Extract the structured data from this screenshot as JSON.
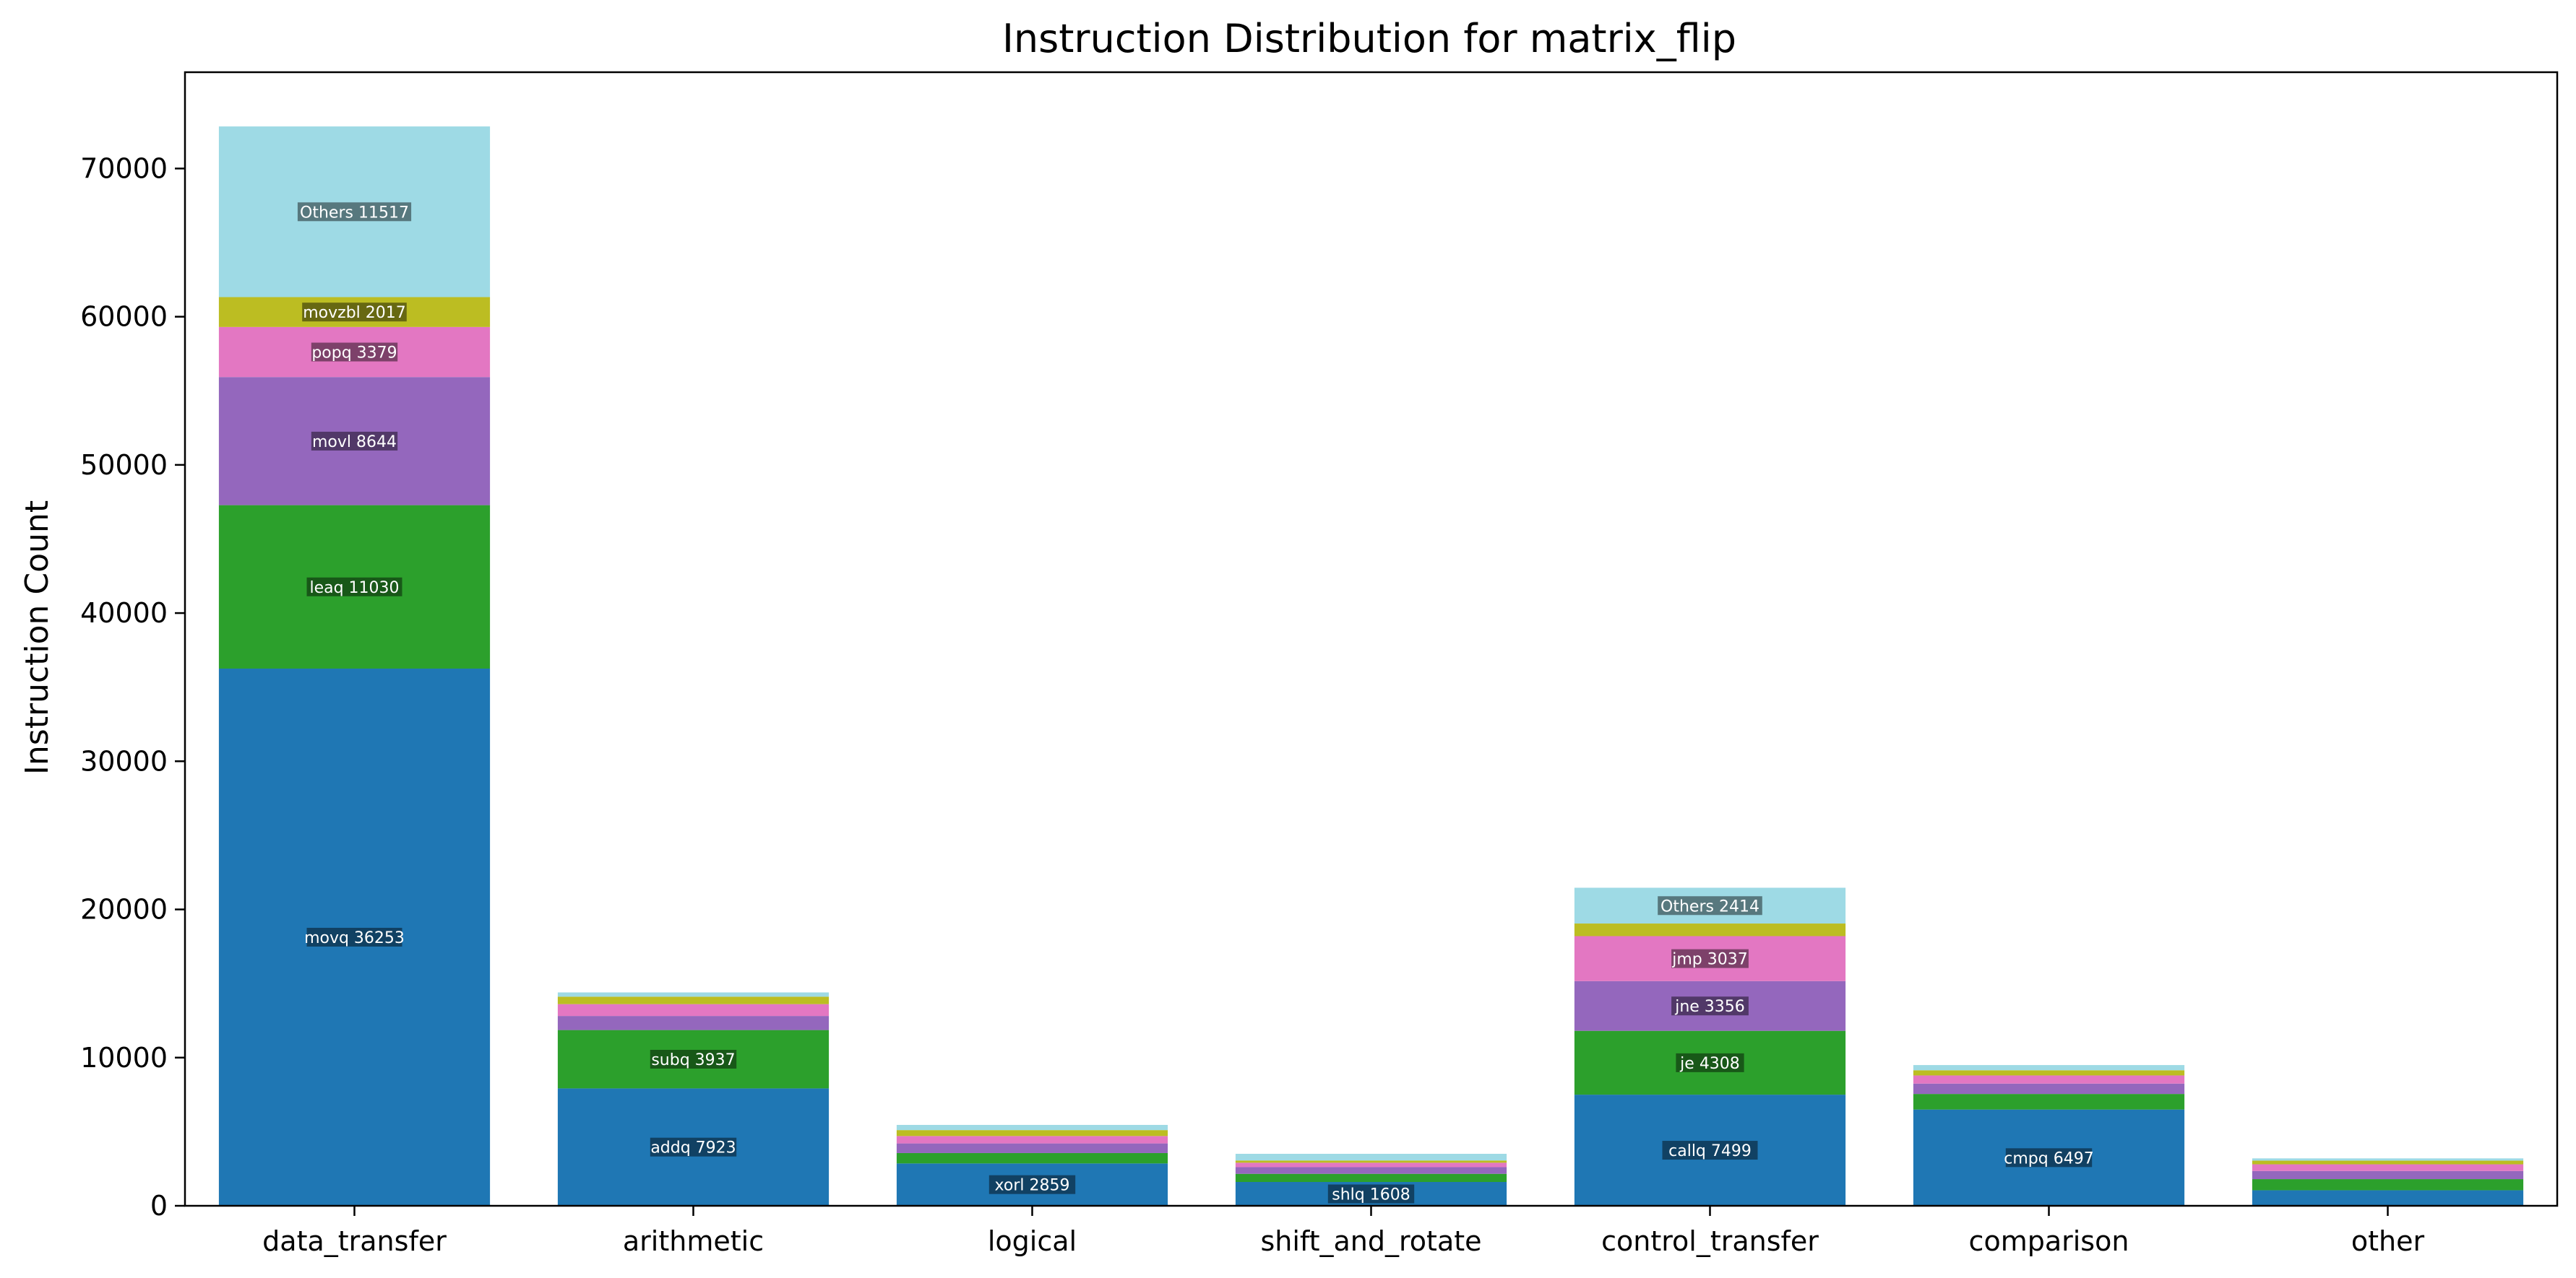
{
  "chart_data": {
    "type": "bar",
    "stacked": true,
    "title": "Instruction Distribution for matrix_flip",
    "xlabel": "",
    "ylabel": "Instruction Count",
    "ylim": [
      0,
      76500
    ],
    "yticks": [
      0,
      10000,
      20000,
      30000,
      40000,
      50000,
      60000,
      70000
    ],
    "grid": false,
    "legend": "none",
    "categories": [
      "data_transfer",
      "arithmetic",
      "logical",
      "shift_and_rotate",
      "control_transfer",
      "comparison",
      "other"
    ],
    "colors": [
      "#1f77b4",
      "#2ca02c",
      "#9467bd",
      "#e377c2",
      "#bcbd22",
      "#9edae5"
    ],
    "stacks": [
      {
        "category": "data_transfer",
        "segments": [
          {
            "label": "movq",
            "value": 36253,
            "show_label": true
          },
          {
            "label": "leaq",
            "value": 11030,
            "show_label": true
          },
          {
            "label": "movl",
            "value": 8644,
            "show_label": true
          },
          {
            "label": "popq",
            "value": 3379,
            "show_label": true
          },
          {
            "label": "movzbl",
            "value": 2017,
            "show_label": true
          },
          {
            "label": "Others",
            "value": 11517,
            "show_label": true
          }
        ]
      },
      {
        "category": "arithmetic",
        "segments": [
          {
            "label": "addq",
            "value": 7923,
            "show_label": true
          },
          {
            "label": "subq",
            "value": 3937,
            "show_label": true
          },
          {
            "label": "",
            "value": 950
          },
          {
            "label": "",
            "value": 800
          },
          {
            "label": "",
            "value": 500
          },
          {
            "label": "",
            "value": 290
          }
        ]
      },
      {
        "category": "logical",
        "segments": [
          {
            "label": "xorl",
            "value": 2859,
            "show_label": true
          },
          {
            "label": "",
            "value": 700
          },
          {
            "label": "",
            "value": 650
          },
          {
            "label": "",
            "value": 500
          },
          {
            "label": "",
            "value": 400
          },
          {
            "label": "",
            "value": 350
          }
        ]
      },
      {
        "category": "shift_and_rotate",
        "segments": [
          {
            "label": "shlq",
            "value": 1608,
            "show_label": true
          },
          {
            "label": "",
            "value": 550
          },
          {
            "label": "",
            "value": 450
          },
          {
            "label": "",
            "value": 300
          },
          {
            "label": "",
            "value": 150
          },
          {
            "label": "",
            "value": 450
          }
        ]
      },
      {
        "category": "control_transfer",
        "segments": [
          {
            "label": "callq",
            "value": 7499,
            "show_label": true
          },
          {
            "label": "je",
            "value": 4308,
            "show_label": true
          },
          {
            "label": "jne",
            "value": 3356,
            "show_label": true
          },
          {
            "label": "jmp",
            "value": 3037,
            "show_label": true
          },
          {
            "label": "",
            "value": 850
          },
          {
            "label": "Others",
            "value": 2414,
            "show_label": true
          }
        ]
      },
      {
        "category": "comparison",
        "segments": [
          {
            "label": "cmpq",
            "value": 6497,
            "show_label": true
          },
          {
            "label": "",
            "value": 1050
          },
          {
            "label": "",
            "value": 700
          },
          {
            "label": "",
            "value": 550
          },
          {
            "label": "",
            "value": 350
          },
          {
            "label": "",
            "value": 350
          }
        ]
      },
      {
        "category": "other",
        "segments": [
          {
            "label": "",
            "value": 1050
          },
          {
            "label": "",
            "value": 750
          },
          {
            "label": "",
            "value": 550
          },
          {
            "label": "",
            "value": 450
          },
          {
            "label": "",
            "value": 250
          },
          {
            "label": "",
            "value": 150
          }
        ]
      }
    ]
  }
}
